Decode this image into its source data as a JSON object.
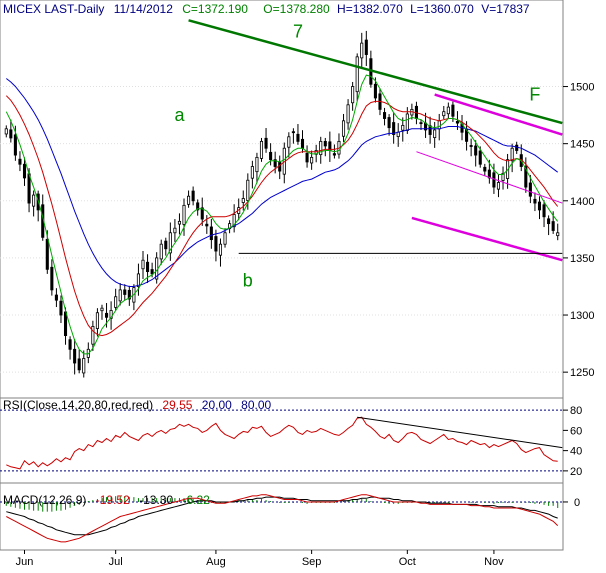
{
  "chart_data": [
    {
      "panel": "price",
      "type": "candlestick",
      "title_parts": {
        "symbol": "MICEX LAST-Daily",
        "date": "11/14/2012",
        "close": "C=1372.190",
        "open": "O=1378.280",
        "high": "H=1382.070",
        "low": "L=1360.070",
        "volume": "V=17837"
      },
      "colors": {
        "close": "#008000",
        "open": "#008000",
        "hlv": "#000080",
        "candle": "#000000",
        "ma_blue": "#0000cc",
        "ma_red": "#cc0000",
        "ma_green": "#00aa00",
        "trend_green": "#007700",
        "channel_magenta": "#dd00dd",
        "support": "#000000"
      },
      "ylim": [
        1230,
        1560
      ],
      "yticks": [
        1250,
        1300,
        1350,
        1400,
        1450,
        1500
      ],
      "xticks": [
        "Jun",
        "Jul",
        "Aug",
        "Sep",
        "Oct",
        "Nov"
      ],
      "xtick_positions": [
        4,
        24,
        46,
        67,
        88,
        107
      ],
      "n_bars": 122,
      "close": [
        1463,
        1455,
        1440,
        1432,
        1420,
        1398,
        1405,
        1392,
        1368,
        1340,
        1322,
        1313,
        1300,
        1282,
        1270,
        1258,
        1252,
        1262,
        1270,
        1290,
        1302,
        1306,
        1298,
        1304,
        1316,
        1322,
        1318,
        1314,
        1324,
        1336,
        1348,
        1338,
        1336,
        1350,
        1362,
        1358,
        1372,
        1376,
        1382,
        1396,
        1404,
        1400,
        1392,
        1384,
        1378,
        1366,
        1356,
        1362,
        1372,
        1380,
        1388,
        1394,
        1402,
        1418,
        1430,
        1438,
        1452,
        1446,
        1436,
        1430,
        1426,
        1446,
        1456,
        1460,
        1452,
        1446,
        1434,
        1438,
        1444,
        1452,
        1448,
        1444,
        1440,
        1452,
        1470,
        1484,
        1500,
        1526,
        1538,
        1528,
        1502,
        1490,
        1480,
        1472,
        1464,
        1458,
        1460,
        1466,
        1476,
        1480,
        1472,
        1468,
        1462,
        1458,
        1462,
        1470,
        1478,
        1482,
        1474,
        1468,
        1460,
        1452,
        1448,
        1440,
        1432,
        1426,
        1420,
        1412,
        1416,
        1424,
        1436,
        1446,
        1444,
        1430,
        1412,
        1404,
        1398,
        1392,
        1386,
        1380,
        1374,
        1372
      ],
      "ma_blue": [
        1507,
        1504,
        1500,
        1495,
        1490,
        1484,
        1478,
        1471,
        1463,
        1454,
        1444,
        1434,
        1424,
        1413,
        1402,
        1391,
        1381,
        1371,
        1362,
        1354,
        1347,
        1341,
        1336,
        1332,
        1329,
        1327,
        1326,
        1325,
        1325,
        1326,
        1327,
        1329,
        1331,
        1334,
        1337,
        1340,
        1343,
        1346,
        1350,
        1354,
        1358,
        1361,
        1364,
        1366,
        1368,
        1370,
        1371,
        1372,
        1374,
        1376,
        1378,
        1380,
        1383,
        1386,
        1389,
        1393,
        1397,
        1400,
        1403,
        1405,
        1407,
        1409,
        1411,
        1413,
        1415,
        1417,
        1418,
        1419,
        1421,
        1423,
        1425,
        1426,
        1427,
        1429,
        1432,
        1435,
        1439,
        1444,
        1449,
        1452,
        1454,
        1456,
        1457,
        1458,
        1459,
        1459,
        1460,
        1461,
        1462,
        1463,
        1463,
        1463,
        1463,
        1463,
        1463,
        1463,
        1464,
        1465,
        1465,
        1465,
        1464,
        1463,
        1462,
        1461,
        1459,
        1457,
        1455,
        1453,
        1451,
        1449,
        1448,
        1448,
        1447,
        1446,
        1444,
        1442,
        1440,
        1437,
        1434,
        1431,
        1428,
        1425
      ],
      "ma_red": [
        1492,
        1488,
        1482,
        1475,
        1467,
        1458,
        1448,
        1437,
        1425,
        1411,
        1397,
        1382,
        1366,
        1350,
        1335,
        1321,
        1309,
        1299,
        1291,
        1286,
        1283,
        1282,
        1283,
        1285,
        1288,
        1291,
        1294,
        1297,
        1301,
        1306,
        1311,
        1315,
        1319,
        1324,
        1329,
        1334,
        1340,
        1346,
        1352,
        1359,
        1366,
        1372,
        1377,
        1381,
        1384,
        1386,
        1386,
        1386,
        1386,
        1387,
        1389,
        1392,
        1395,
        1399,
        1404,
        1410,
        1416,
        1421,
        1425,
        1428,
        1431,
        1434,
        1437,
        1440,
        1442,
        1443,
        1443,
        1443,
        1443,
        1444,
        1445,
        1445,
        1445,
        1446,
        1449,
        1453,
        1459,
        1467,
        1476,
        1483,
        1486,
        1487,
        1487,
        1486,
        1484,
        1481,
        1479,
        1478,
        1478,
        1478,
        1477,
        1476,
        1474,
        1472,
        1471,
        1470,
        1471,
        1472,
        1472,
        1471,
        1469,
        1466,
        1463,
        1460,
        1456,
        1452,
        1447,
        1442,
        1438,
        1436,
        1435,
        1436,
        1437,
        1436,
        1432,
        1427,
        1422,
        1417,
        1412,
        1406,
        1400,
        1395
      ],
      "ma_green": [
        1478,
        1470,
        1460,
        1449,
        1437,
        1423,
        1412,
        1400,
        1386,
        1369,
        1352,
        1336,
        1320,
        1304,
        1290,
        1278,
        1270,
        1266,
        1266,
        1271,
        1279,
        1288,
        1293,
        1298,
        1304,
        1310,
        1313,
        1315,
        1318,
        1323,
        1330,
        1333,
        1335,
        1339,
        1345,
        1350,
        1357,
        1363,
        1369,
        1377,
        1385,
        1390,
        1393,
        1393,
        1391,
        1386,
        1380,
        1376,
        1375,
        1376,
        1379,
        1384,
        1390,
        1398,
        1407,
        1416,
        1426,
        1432,
        1435,
        1435,
        1434,
        1436,
        1440,
        1444,
        1446,
        1446,
        1443,
        1441,
        1441,
        1443,
        1444,
        1444,
        1443,
        1444,
        1450,
        1459,
        1471,
        1487,
        1502,
        1510,
        1509,
        1505,
        1498,
        1491,
        1484,
        1477,
        1472,
        1470,
        1471,
        1473,
        1472,
        1471,
        1468,
        1465,
        1464,
        1465,
        1468,
        1472,
        1472,
        1471,
        1467,
        1462,
        1457,
        1451,
        1445,
        1439,
        1433,
        1427,
        1423,
        1423,
        1427,
        1433,
        1437,
        1435,
        1428,
        1420,
        1413,
        1406,
        1399,
        1393,
        1387,
        1382
      ],
      "trend_line_7": {
        "from": [
          40,
          1558
        ],
        "to": [
          122,
          1468
        ]
      },
      "channel_top": {
        "from": [
          94,
          1493
        ],
        "to": [
          122,
          1458
        ]
      },
      "channel_mid": {
        "from": [
          90,
          1443
        ],
        "to": [
          122,
          1398
        ]
      },
      "channel_bottom": {
        "from": [
          89,
          1385
        ],
        "to": [
          122,
          1348
        ]
      },
      "support_line": {
        "from": [
          51,
          1354
        ],
        "to": [
          122,
          1354
        ]
      },
      "annotations": [
        {
          "text": "7",
          "x": 64,
          "y": 1543
        },
        {
          "text": "a",
          "x": 38,
          "y": 1470
        },
        {
          "text": "b",
          "x": 53,
          "y": 1325
        },
        {
          "text": "F",
          "x": 116,
          "y": 1488
        }
      ]
    },
    {
      "panel": "rsi",
      "type": "line",
      "label_parts": {
        "name": "RSI(Close,14,20,80,red,red)",
        "value": "29.55",
        "low": "20.00",
        "high": "80.00"
      },
      "ylim": [
        10,
        90
      ],
      "yticks": [
        20,
        40,
        60,
        80
      ],
      "levels": [
        20,
        80
      ],
      "values": [
        26,
        24,
        23,
        22,
        30,
        26,
        29,
        24,
        28,
        25,
        28,
        32,
        29,
        33,
        31,
        39,
        42,
        40,
        46,
        44,
        50,
        48,
        52,
        49,
        55,
        53,
        58,
        54,
        52,
        50,
        55,
        57,
        54,
        58,
        60,
        57,
        61,
        62,
        66,
        64,
        66,
        63,
        62,
        58,
        60,
        64,
        67,
        60,
        56,
        54,
        52,
        56,
        59,
        58,
        63,
        62,
        64,
        58,
        54,
        56,
        58,
        62,
        65,
        63,
        58,
        56,
        60,
        58,
        59,
        62,
        60,
        58,
        56,
        55,
        58,
        62,
        65,
        72,
        73,
        66,
        63,
        59,
        54,
        52,
        56,
        50,
        48,
        52,
        57,
        58,
        56,
        51,
        49,
        47,
        50,
        53,
        56,
        51,
        52,
        49,
        48,
        46,
        50,
        48,
        46,
        47,
        43,
        46,
        44,
        46,
        48,
        50,
        47,
        41,
        38,
        40,
        42,
        43,
        36,
        33,
        30,
        29.55
      ],
      "divergence_line": {
        "from": [
          77,
          73
        ],
        "to": [
          122,
          43
        ]
      }
    },
    {
      "panel": "macd",
      "type": "line",
      "label_parts": {
        "name": "MACD(12,26,9)",
        "macd": "-19.52",
        "signal": "-13.30",
        "hist": "-6.22"
      },
      "ylim": [
        -38,
        14
      ],
      "yticks": [
        0
      ],
      "macd_values": [
        -12,
        -14,
        -16,
        -18,
        -20,
        -22,
        -24,
        -26,
        -28,
        -30,
        -31,
        -32,
        -33,
        -33,
        -32,
        -31,
        -30,
        -28,
        -26,
        -24,
        -22,
        -20,
        -18,
        -16,
        -14,
        -12,
        -11,
        -10,
        -9,
        -8,
        -7,
        -6,
        -5,
        -4,
        -3,
        -2,
        -1,
        0,
        1,
        2,
        3,
        3,
        3,
        2,
        1,
        0,
        -1,
        -1,
        -1,
        0,
        1,
        2,
        3,
        4,
        5,
        5,
        6,
        6,
        5,
        4,
        3,
        2,
        2,
        2,
        2,
        1,
        0,
        0,
        0,
        0,
        0,
        0,
        0,
        1,
        2,
        3,
        4,
        5,
        6,
        6,
        5,
        4,
        3,
        2,
        1,
        0,
        0,
        0,
        0,
        0,
        0,
        -1,
        -1,
        -2,
        -2,
        -2,
        -2,
        -2,
        -2,
        -2,
        -2,
        -2,
        -3,
        -3,
        -3,
        -4,
        -4,
        -5,
        -5,
        -5,
        -5,
        -5,
        -5,
        -6,
        -7,
        -8,
        -9,
        -10,
        -12,
        -14,
        -16,
        -19.52
      ],
      "signal_values": [
        -8,
        -9,
        -10,
        -11,
        -12,
        -14,
        -15,
        -17,
        -18,
        -20,
        -21,
        -23,
        -24,
        -25,
        -26,
        -27,
        -27,
        -27,
        -27,
        -26,
        -25,
        -24,
        -23,
        -21,
        -20,
        -18,
        -17,
        -15,
        -14,
        -12,
        -11,
        -10,
        -9,
        -8,
        -7,
        -6,
        -5,
        -4,
        -3,
        -2,
        -1,
        0,
        1,
        1,
        1,
        1,
        0,
        0,
        0,
        0,
        0,
        1,
        1,
        2,
        2,
        3,
        3,
        4,
        4,
        4,
        4,
        3,
        3,
        3,
        2,
        2,
        2,
        1,
        1,
        1,
        1,
        1,
        1,
        1,
        1,
        1,
        2,
        2,
        3,
        3,
        4,
        4,
        3,
        3,
        3,
        2,
        2,
        1,
        1,
        1,
        0,
        0,
        0,
        -1,
        -1,
        -1,
        -1,
        -1,
        -2,
        -2,
        -2,
        -2,
        -2,
        -2,
        -3,
        -3,
        -3,
        -3,
        -4,
        -4,
        -4,
        -4,
        -5,
        -5,
        -6,
        -7,
        -7,
        -8,
        -9,
        -10,
        -12,
        -13.3
      ]
    }
  ]
}
